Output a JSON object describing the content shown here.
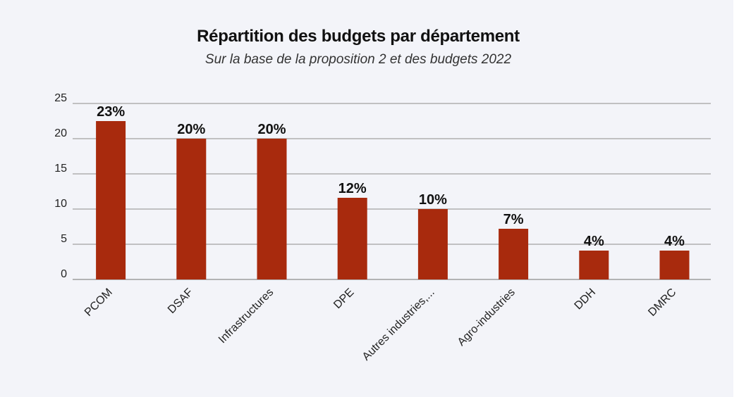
{
  "colors": {
    "background": "#f3f4f9",
    "bar": "#a82a0d",
    "grid": "#8c8c8c",
    "text": "#111111"
  },
  "chart_data": {
    "type": "bar",
    "title": "Répartition des budgets par département",
    "subtitle": "Sur la base de la proposition 2 et des budgets 2022",
    "categories": [
      "PCOM",
      "DSAF",
      "Infrastructures",
      "DPE",
      "Autres industries,...",
      "Agro-industries",
      "DDH",
      "DMRC"
    ],
    "values": [
      22.5,
      20,
      20,
      11.6,
      10,
      7.2,
      4.1,
      4.1
    ],
    "data_labels": [
      "23%",
      "20%",
      "20%",
      "12%",
      "10%",
      "7%",
      "4%",
      "4%"
    ],
    "ylim": [
      0,
      25
    ],
    "yticks": [
      0,
      5,
      10,
      15,
      20,
      25
    ],
    "xlabel": "",
    "ylabel": "",
    "grid": true,
    "legend": "none"
  }
}
